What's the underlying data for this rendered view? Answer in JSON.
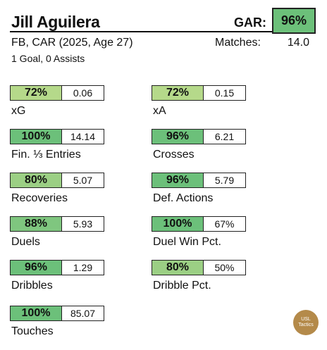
{
  "player": {
    "name": "Jill Aguilera",
    "subline": "FB, CAR (2025, Age 27)",
    "goals_assists": "1 Goal,  0 Assists"
  },
  "gar": {
    "label": "GAR:",
    "value": "96%",
    "color": "#6cc07a"
  },
  "matches": {
    "label": "Matches:",
    "value": "14.0"
  },
  "stats": [
    {
      "pct": "72%",
      "value": "0.06",
      "label": "xG",
      "color": "#b5d98a"
    },
    {
      "pct": "72%",
      "value": "0.15",
      "label": "xA",
      "color": "#b5d98a"
    },
    {
      "pct": "100%",
      "value": "14.14",
      "label": "Fin. ⅓ Entries",
      "color": "#6cc07a"
    },
    {
      "pct": "96%",
      "value": "6.21",
      "label": "Crosses",
      "color": "#6cc07a"
    },
    {
      "pct": "80%",
      "value": "5.07",
      "label": "Recoveries",
      "color": "#9bcf84"
    },
    {
      "pct": "96%",
      "value": "5.79",
      "label": "Def. Actions",
      "color": "#6cc07a"
    },
    {
      "pct": "88%",
      "value": "5.93",
      "label": "Duels",
      "color": "#7fc67f"
    },
    {
      "pct": "100%",
      "value": "67%",
      "label": "Duel Win Pct.",
      "color": "#6cc07a"
    },
    {
      "pct": "96%",
      "value": "1.29",
      "label": "Dribbles",
      "color": "#6cc07a"
    },
    {
      "pct": "80%",
      "value": "50%",
      "label": "Dribble Pct.",
      "color": "#9bcf84"
    },
    {
      "pct": "100%",
      "value": "85.07",
      "label": "Touches",
      "color": "#6cc07a"
    }
  ],
  "logo": {
    "line1": "USL",
    "line2": "Tactics",
    "color": "#b48a4a"
  }
}
